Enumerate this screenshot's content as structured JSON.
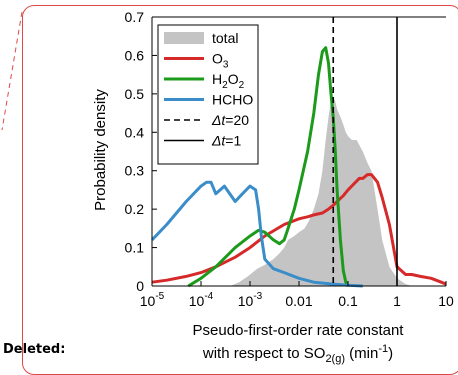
{
  "sidebar": {
    "deleted_label": "Deleted:"
  },
  "colors": {
    "total": "#c4c4c4",
    "o3": "#d62a2a",
    "h2o2": "#1c9a1c",
    "hcho": "#3a8dc8",
    "frame": "#e04848"
  },
  "chart_data": {
    "type": "line",
    "ylabel": "Probability density",
    "xlabel_line1": "Pseudo-first-order rate constant",
    "xlabel_line2": {
      "text": "with respect to SO",
      "sub": "2(g)",
      "unit": " (min",
      "sup": "-1",
      "close": ")"
    },
    "xscale": "log",
    "xlim": [
      1e-05,
      10
    ],
    "ylim": [
      0,
      0.7
    ],
    "yticks": [
      "0",
      "0.1",
      "0.2",
      "0.3",
      "0.4",
      "0.5",
      "0.6",
      "0.7"
    ],
    "xticks": [
      {
        "base": "10",
        "exp": "-5"
      },
      {
        "base": "10",
        "exp": "-4"
      },
      {
        "base": "10",
        "exp": "-3"
      },
      {
        "base": "0.01",
        "exp": ""
      },
      {
        "base": "0.1",
        "exp": ""
      },
      {
        "base": "1",
        "exp": ""
      },
      {
        "base": "10",
        "exp": ""
      }
    ],
    "legend": {
      "placement": "top-left",
      "entries": [
        {
          "text": "total",
          "sub": "",
          "sub2": "",
          "text2": "",
          "style": "fill"
        },
        {
          "text": "O",
          "sub": "3",
          "sub2": "",
          "text2": "",
          "style": "o3"
        },
        {
          "text": "H",
          "sub": "2",
          "text2": "O",
          "sub2": "2",
          "style": "h2o2"
        },
        {
          "text": "HCHO",
          "sub": "",
          "sub2": "",
          "text2": "",
          "style": "hcho"
        },
        {
          "text": "Δt",
          "sub": "",
          "sub2": "",
          "text2": "=20",
          "style": "dashed"
        },
        {
          "text": "Δt",
          "sub": "",
          "sub2": "",
          "text2": "=1",
          "style": "solid"
        }
      ]
    },
    "vlines": [
      {
        "name": "dt20",
        "x": 0.05,
        "style": "dashed"
      },
      {
        "name": "dt1",
        "x": 1,
        "style": "solid"
      }
    ],
    "series": [
      {
        "key": "total",
        "kind": "area",
        "x": [
          0.0004,
          0.0006,
          0.0009,
          0.0014,
          0.002,
          0.003,
          0.004,
          0.005,
          0.006,
          0.008,
          0.01,
          0.013,
          0.016,
          0.02,
          0.025,
          0.03,
          0.035,
          0.04,
          0.045,
          0.05,
          0.055,
          0.06,
          0.07,
          0.08,
          0.09,
          0.1,
          0.12,
          0.15,
          0.2,
          0.25,
          0.3,
          0.4,
          0.5,
          0.7,
          1,
          1.5,
          2
        ],
        "y": [
          0,
          0.01,
          0.025,
          0.045,
          0.055,
          0.07,
          0.085,
          0.1,
          0.12,
          0.13,
          0.14,
          0.15,
          0.17,
          0.2,
          0.24,
          0.3,
          0.38,
          0.44,
          0.48,
          0.49,
          0.48,
          0.46,
          0.44,
          0.42,
          0.4,
          0.39,
          0.38,
          0.38,
          0.35,
          0.32,
          0.3,
          0.2,
          0.12,
          0.05,
          0.02,
          0.005,
          0
        ]
      },
      {
        "key": "o3",
        "kind": "line",
        "x": [
          1e-05,
          2e-05,
          5e-05,
          0.0001,
          0.0002,
          0.0005,
          0.001,
          0.002,
          0.005,
          0.01,
          0.015,
          0.02,
          0.03,
          0.04,
          0.05,
          0.06,
          0.08,
          0.1,
          0.13,
          0.17,
          0.2,
          0.25,
          0.3,
          0.4,
          0.5,
          0.7,
          1,
          1.5,
          2,
          3,
          5,
          8,
          10
        ],
        "y": [
          0.01,
          0.015,
          0.025,
          0.035,
          0.05,
          0.075,
          0.1,
          0.13,
          0.16,
          0.175,
          0.18,
          0.185,
          0.19,
          0.2,
          0.21,
          0.22,
          0.235,
          0.25,
          0.265,
          0.28,
          0.28,
          0.29,
          0.29,
          0.27,
          0.23,
          0.16,
          0.05,
          0.03,
          0.03,
          0.025,
          0.02,
          0.01,
          0.005
        ]
      },
      {
        "key": "h2o2",
        "kind": "line",
        "x": [
          5.5e-05,
          0.0001,
          0.0002,
          0.0005,
          0.001,
          0.0015,
          0.002,
          0.003,
          0.004,
          0.005,
          0.006,
          0.008,
          0.01,
          0.015,
          0.02,
          0.025,
          0.03,
          0.035,
          0.04,
          0.045,
          0.05,
          0.055,
          0.06,
          0.07,
          0.08,
          0.09,
          0.1
        ],
        "y": [
          0,
          0.02,
          0.05,
          0.1,
          0.13,
          0.145,
          0.14,
          0.12,
          0.11,
          0.12,
          0.15,
          0.2,
          0.25,
          0.35,
          0.45,
          0.55,
          0.61,
          0.62,
          0.58,
          0.5,
          0.44,
          0.35,
          0.25,
          0.12,
          0.04,
          0.01,
          0
        ]
      },
      {
        "key": "hcho",
        "kind": "line",
        "x": [
          1e-05,
          2e-05,
          5e-05,
          0.0001,
          0.00013,
          0.00016,
          0.0002,
          0.0003,
          0.0005,
          0.0007,
          0.001,
          0.0013,
          0.0015,
          0.0017,
          0.002,
          0.003,
          0.005,
          0.01,
          0.02,
          0.05,
          0.1,
          0.2
        ],
        "y": [
          0.12,
          0.16,
          0.22,
          0.26,
          0.27,
          0.27,
          0.24,
          0.26,
          0.22,
          0.24,
          0.26,
          0.25,
          0.2,
          0.13,
          0.07,
          0.045,
          0.035,
          0.02,
          0.01,
          0.005,
          0.002,
          0
        ]
      }
    ]
  }
}
